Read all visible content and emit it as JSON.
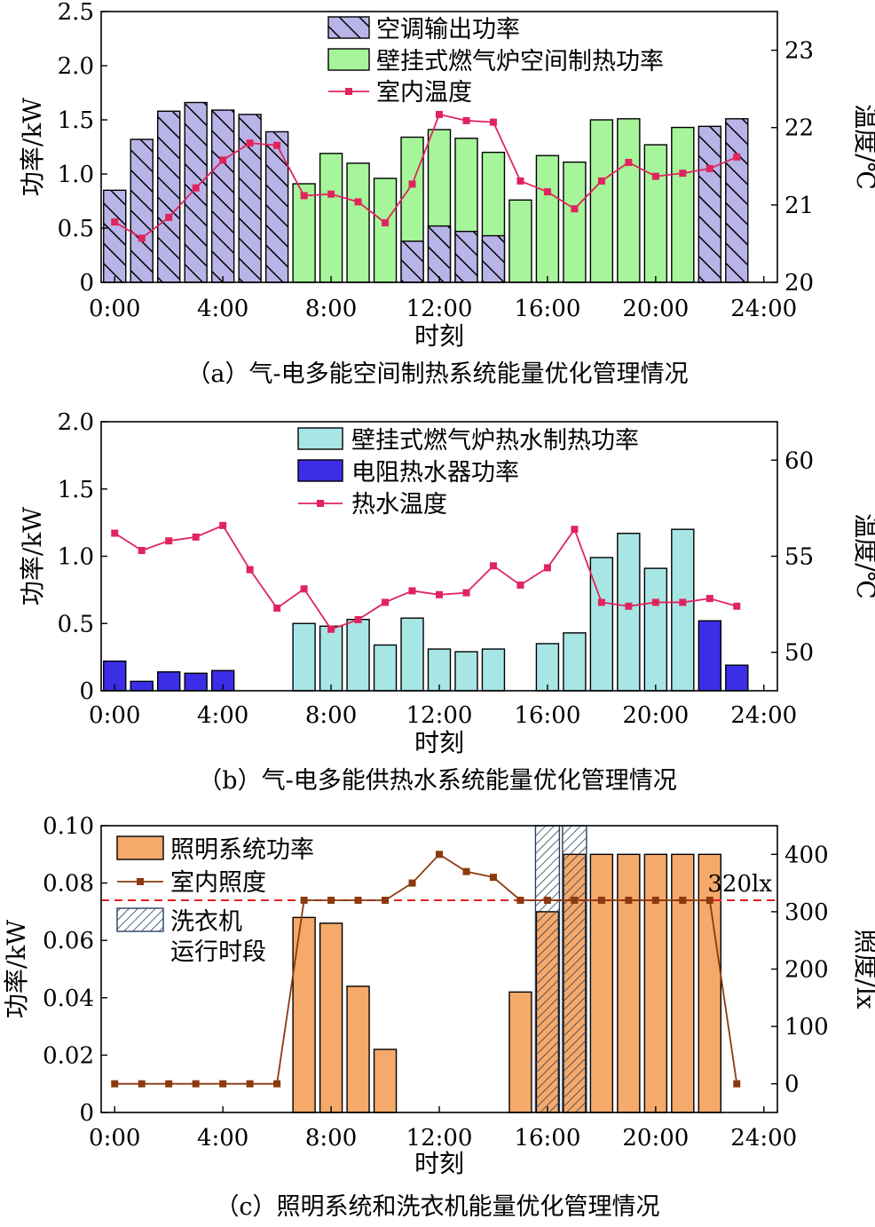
{
  "colors": {
    "ac": "#b8b4e8",
    "furnace": "#a6f59a",
    "water_furnace": "#a8e6e6",
    "heater": "#3b2ee6",
    "light": "#f5a96a",
    "temp_line": "#e0245e",
    "lux_line": "#8b3a0f",
    "ref_line": "#e62020"
  },
  "chart_data": [
    {
      "id": "a",
      "type": "bar",
      "caption": "（a）气-电多能空间制热系统能量优化管理情况",
      "xlabel": "时刻",
      "ylabel": "功率/kW",
      "y2label": "温度/℃",
      "ylim": [
        0,
        2.5
      ],
      "yticks": [
        "0",
        "0.5",
        "1.0",
        "1.5",
        "2.0",
        "2.5"
      ],
      "y2lim": [
        20,
        23.5
      ],
      "y2ticks": [
        "20",
        "21",
        "22",
        "23"
      ],
      "xticks": [
        "0:00",
        "4:00",
        "8:00",
        "12:00",
        "16:00",
        "20:00",
        "24:00"
      ],
      "legend": [
        "空调输出功率",
        "壁挂式燃气炉空间制热功率",
        "室内温度"
      ],
      "hours": [
        0,
        1,
        2,
        3,
        4,
        5,
        6,
        7,
        8,
        9,
        10,
        11,
        12,
        13,
        14,
        15,
        16,
        17,
        18,
        19,
        20,
        21,
        22,
        23
      ],
      "ac_power": [
        0.85,
        1.32,
        1.58,
        1.66,
        1.59,
        1.55,
        1.39,
        0,
        0,
        0,
        0,
        0.38,
        0.52,
        0.47,
        0.43,
        0,
        0,
        0,
        0,
        0,
        0,
        0,
        1.44,
        1.51
      ],
      "furnace_power": [
        0,
        0,
        0,
        0,
        0,
        0,
        0,
        0.91,
        1.19,
        1.1,
        0.96,
        1.34,
        1.41,
        1.33,
        1.2,
        0.76,
        1.17,
        1.11,
        1.5,
        1.51,
        1.27,
        1.43,
        0,
        0
      ],
      "indoor_temp": [
        20.78,
        20.57,
        20.84,
        21.22,
        21.58,
        21.8,
        21.77,
        21.12,
        21.14,
        21.04,
        20.77,
        21.27,
        22.17,
        22.09,
        22.07,
        21.31,
        21.17,
        20.95,
        21.31,
        21.55,
        21.37,
        21.41,
        21.47,
        21.62
      ]
    },
    {
      "id": "b",
      "type": "bar",
      "caption": "（b）气-电多能供热水系统能量优化管理情况",
      "xlabel": "时刻",
      "ylabel": "功率/kW",
      "y2label": "温度/℃",
      "ylim": [
        0,
        2.0
      ],
      "yticks": [
        "0",
        "0.5",
        "1.0",
        "1.5",
        "2.0"
      ],
      "y2lim": [
        48,
        62
      ],
      "y2ticks": [
        "50",
        "55",
        "60"
      ],
      "xticks": [
        "0:00",
        "4:00",
        "8:00",
        "12:00",
        "16:00",
        "20:00",
        "24:00"
      ],
      "legend": [
        "壁挂式燃气炉热水制热功率",
        "电阻热水器功率",
        "热水温度"
      ],
      "hours": [
        0,
        1,
        2,
        3,
        4,
        5,
        6,
        7,
        8,
        9,
        10,
        11,
        12,
        13,
        14,
        15,
        16,
        17,
        18,
        19,
        20,
        21,
        22,
        23
      ],
      "furnace_power": [
        0,
        0,
        0,
        0,
        0,
        0,
        0,
        0.5,
        0.48,
        0.53,
        0.34,
        0.54,
        0.31,
        0.29,
        0.31,
        0,
        0.35,
        0.43,
        0.99,
        1.17,
        0.91,
        1.2,
        0,
        0
      ],
      "heater_power": [
        0.22,
        0.07,
        0.14,
        0.13,
        0.15,
        0,
        0,
        0,
        0,
        0,
        0,
        0,
        0,
        0,
        0,
        0,
        0,
        0,
        0,
        0,
        0,
        0,
        0.52,
        0.19
      ],
      "water_temp": [
        56.2,
        55.3,
        55.8,
        56.0,
        56.6,
        54.3,
        52.3,
        53.3,
        51.2,
        51.7,
        52.6,
        53.2,
        53.0,
        53.1,
        54.5,
        53.5,
        54.4,
        56.4,
        52.6,
        52.4,
        52.6,
        52.6,
        52.8,
        52.4
      ]
    },
    {
      "id": "c",
      "type": "bar",
      "caption": "（c）照明系统和洗衣机能量优化管理情况",
      "xlabel": "时刻",
      "ylabel": "功率/kW",
      "y2label": "照度/lx",
      "ylim": [
        0,
        0.1
      ],
      "yticks": [
        "0",
        "0.02",
        "0.04",
        "0.06",
        "0.08",
        "0.10"
      ],
      "y2lim": [
        -50,
        450
      ],
      "y2ticks": [
        "0",
        "100",
        "200",
        "300",
        "400"
      ],
      "xticks": [
        "0:00",
        "4:00",
        "8:00",
        "12:00",
        "16:00",
        "20:00",
        "24:00"
      ],
      "legend": [
        "照明系统功率",
        "室内照度",
        "洗衣机",
        "运行时段"
      ],
      "annotation": "320lx",
      "reference_lux": 320,
      "washer_hours": [
        16,
        17
      ],
      "hours": [
        0,
        1,
        2,
        3,
        4,
        5,
        6,
        7,
        8,
        9,
        10,
        11,
        12,
        13,
        14,
        15,
        16,
        17,
        18,
        19,
        20,
        21,
        22,
        23
      ],
      "light_power": [
        0,
        0,
        0,
        0,
        0,
        0,
        0,
        0.068,
        0.066,
        0.044,
        0.022,
        0,
        0,
        0,
        0,
        0.042,
        0.07,
        0.09,
        0.09,
        0.09,
        0.09,
        0.09,
        0.09,
        0
      ],
      "indoor_lux": [
        0,
        0,
        0,
        0,
        0,
        0,
        0,
        320,
        320,
        320,
        320,
        350,
        400,
        370,
        360,
        320,
        320,
        320,
        320,
        320,
        320,
        320,
        320,
        0
      ]
    }
  ]
}
